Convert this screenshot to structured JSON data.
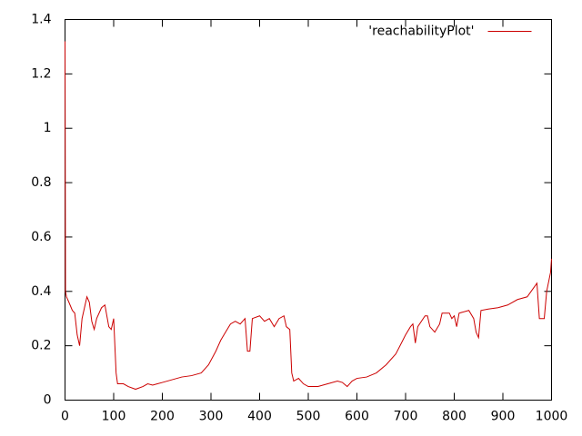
{
  "chart_data": {
    "type": "line",
    "x": [
      0,
      1,
      3,
      8,
      15,
      20,
      25,
      30,
      35,
      45,
      50,
      55,
      60,
      65,
      75,
      82,
      90,
      95,
      100,
      105,
      108,
      120,
      130,
      145,
      160,
      170,
      180,
      190,
      200,
      220,
      240,
      260,
      280,
      295,
      310,
      320,
      330,
      340,
      350,
      360,
      370,
      375,
      380,
      385,
      400,
      410,
      420,
      430,
      440,
      450,
      455,
      462,
      466,
      470,
      480,
      490,
      500,
      520,
      540,
      560,
      570,
      580,
      590,
      600,
      620,
      640,
      660,
      680,
      700,
      710,
      715,
      720,
      725,
      740,
      745,
      750,
      760,
      770,
      775,
      790,
      795,
      800,
      805,
      810,
      830,
      840,
      845,
      850,
      855,
      870,
      890,
      910,
      930,
      950,
      970,
      975,
      985,
      990,
      998,
      1000
    ],
    "series": [
      {
        "name": "'reachabilityPlot'",
        "color": "#cc0000",
        "values": [
          1.32,
          0.4,
          0.38,
          0.36,
          0.33,
          0.32,
          0.24,
          0.2,
          0.3,
          0.38,
          0.36,
          0.29,
          0.26,
          0.3,
          0.34,
          0.35,
          0.27,
          0.26,
          0.3,
          0.1,
          0.06,
          0.06,
          0.05,
          0.04,
          0.05,
          0.06,
          0.055,
          0.06,
          0.065,
          0.075,
          0.085,
          0.09,
          0.1,
          0.13,
          0.18,
          0.22,
          0.25,
          0.28,
          0.29,
          0.28,
          0.3,
          0.18,
          0.18,
          0.3,
          0.31,
          0.29,
          0.3,
          0.27,
          0.3,
          0.31,
          0.27,
          0.26,
          0.1,
          0.07,
          0.08,
          0.06,
          0.05,
          0.05,
          0.06,
          0.07,
          0.065,
          0.05,
          0.07,
          0.08,
          0.085,
          0.1,
          0.13,
          0.17,
          0.24,
          0.27,
          0.28,
          0.21,
          0.27,
          0.31,
          0.31,
          0.27,
          0.25,
          0.28,
          0.32,
          0.32,
          0.3,
          0.31,
          0.27,
          0.32,
          0.33,
          0.3,
          0.25,
          0.23,
          0.33,
          0.335,
          0.34,
          0.35,
          0.37,
          0.38,
          0.43,
          0.3,
          0.3,
          0.4,
          0.47,
          0.52
        ]
      }
    ],
    "xlim": [
      0,
      1000
    ],
    "xticks": [
      0,
      100,
      200,
      300,
      400,
      500,
      600,
      700,
      800,
      900,
      1000
    ],
    "ylim": [
      0,
      1.4
    ],
    "yticks": [
      0,
      0.2,
      0.4,
      0.6,
      0.8,
      1,
      1.2,
      1.4
    ],
    "legend": "top-right"
  }
}
